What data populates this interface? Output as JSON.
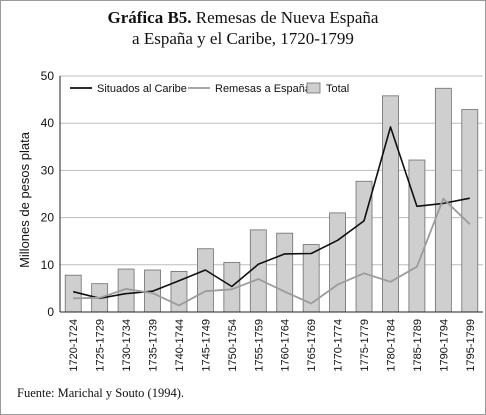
{
  "title": {
    "prefix": "Gráfica B5.",
    "line1_rest": " Remesas de Nueva España",
    "line2": "a España y el Caribe, 1720-1799"
  },
  "source": "Fuente: Marichal y Souto (1994).",
  "chart_data": {
    "type": "bar",
    "categories": [
      "1720-1724",
      "1725-1729",
      "1730-1734",
      "1735-1739",
      "1740-1744",
      "1745-1749",
      "1750-1754",
      "1755-1759",
      "1760-1764",
      "1765-1769",
      "1770-1774",
      "1775-1779",
      "1780-1784",
      "1785-1789",
      "1790-1794",
      "1795-1799"
    ],
    "ylabel": "Millones de pesos plata",
    "ylim": [
      0,
      50
    ],
    "yticks": [
      0,
      10,
      20,
      30,
      40,
      50
    ],
    "grid": true,
    "legend_position": "top",
    "series": [
      {
        "name": "Situados al Caribe",
        "kind": "line",
        "color": "#111111",
        "values": [
          4.3,
          2.9,
          3.9,
          4.4,
          6.6,
          8.9,
          5.4,
          10.1,
          12.3,
          12.4,
          15.2,
          19.3,
          39.2,
          22.4,
          23.0,
          24.1
        ]
      },
      {
        "name": "Remesas a España",
        "kind": "line",
        "color": "#9c9c9c",
        "values": [
          2.9,
          3.0,
          4.9,
          4.0,
          1.4,
          4.4,
          4.8,
          7.0,
          4.3,
          1.8,
          5.8,
          8.2,
          6.4,
          9.6,
          24.0,
          18.6
        ]
      },
      {
        "name": "Total",
        "kind": "bar",
        "color": "#cfcfcf",
        "values": [
          7.8,
          6.0,
          9.1,
          8.9,
          8.6,
          13.4,
          10.5,
          17.4,
          16.7,
          14.3,
          21.0,
          27.7,
          45.8,
          32.2,
          47.4,
          42.9
        ]
      }
    ]
  }
}
